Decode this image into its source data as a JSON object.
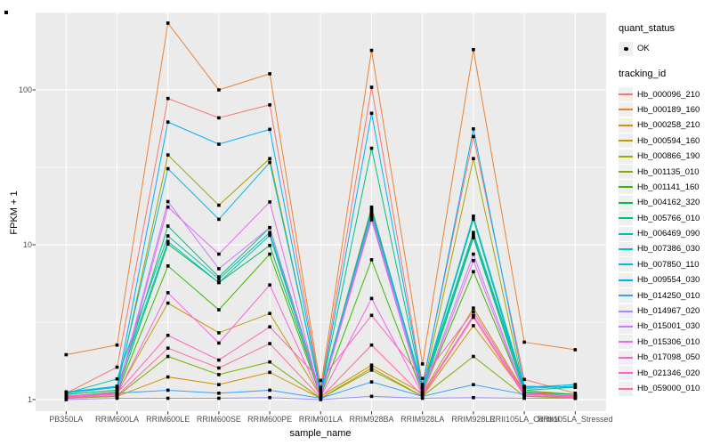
{
  "figure": {
    "panel_background": "#EBEBEB",
    "gridline_color": "#FFFFFF",
    "tick_mark_color": "#333333",
    "tick_label_color": "#4D4D4D",
    "point_color": "#000000",
    "legend_key_background": "#EFEFEF"
  },
  "legend": {
    "quant_status_title": "quant_status",
    "ok_label": "OK",
    "tracking_title": "tracking_id"
  },
  "chart_data": {
    "type": "line",
    "title": "",
    "xlabel": "sample_name",
    "ylabel": "FPKM + 1",
    "y_scale": "log10",
    "y_ticks": [
      1,
      10,
      100
    ],
    "y_tick_labels": [
      "1",
      "10",
      "100"
    ],
    "ylim": [
      1,
      320
    ],
    "grid": true,
    "legend_position": "right",
    "point_shape": "filled-square",
    "categories": [
      "PB350LA",
      "RRIM600LA",
      "RRIM600LE",
      "RRIM600SE",
      "RRIM600PE",
      "RRIM901LA",
      "RRIM928BA",
      "RRIM928LA",
      "RRIM928LE",
      "RRII105LA_Control",
      "RRII105LA_Stressed"
    ],
    "series": [
      {
        "name": "Hb_000096_210",
        "color": "#F8766D",
        "values": [
          1.1,
          1.62,
          88,
          66,
          80,
          1.15,
          104,
          1.25,
          50,
          1.35,
          1.1
        ]
      },
      {
        "name": "Hb_000189_160",
        "color": "#EA8331",
        "values": [
          1.95,
          2.25,
          270,
          100,
          127,
          1.2,
          180,
          1.7,
          182,
          2.35,
          2.1
        ]
      },
      {
        "name": "Hb_000258_210",
        "color": "#D89000",
        "values": [
          1.02,
          1.05,
          1.4,
          1.25,
          1.5,
          1.02,
          1.6,
          1.05,
          3.0,
          1.1,
          1.02
        ]
      },
      {
        "name": "Hb_000594_160",
        "color": "#C09B00",
        "values": [
          1.05,
          1.1,
          4.2,
          2.7,
          3.6,
          1.05,
          1.67,
          1.1,
          3.9,
          1.12,
          1.05
        ]
      },
      {
        "name": "Hb_000866_190",
        "color": "#A3A500",
        "values": [
          1.08,
          1.15,
          38,
          18,
          36,
          1.1,
          17.5,
          1.15,
          36,
          1.15,
          1.08
        ]
      },
      {
        "name": "Hb_001135_010",
        "color": "#7CAE00",
        "values": [
          1.02,
          1.05,
          1.9,
          1.45,
          1.75,
          1.02,
          1.55,
          1.05,
          1.9,
          1.05,
          1.02
        ]
      },
      {
        "name": "Hb_001141_160",
        "color": "#39B600",
        "values": [
          1.05,
          1.1,
          7.3,
          3.8,
          8.7,
          1.05,
          8.0,
          1.1,
          6.7,
          1.1,
          1.05
        ]
      },
      {
        "name": "Hb_004162_320",
        "color": "#00BB4E",
        "values": [
          1.05,
          1.12,
          10.1,
          5.7,
          9.9,
          1.08,
          15.0,
          1.12,
          11.1,
          1.12,
          1.08
        ]
      },
      {
        "name": "Hb_005766_010",
        "color": "#00BF7D",
        "values": [
          1.08,
          1.15,
          13.2,
          6.2,
          12.9,
          1.1,
          42,
          1.18,
          14.6,
          1.15,
          1.2
        ]
      },
      {
        "name": "Hb_006469_090",
        "color": "#00C1A3",
        "values": [
          1.1,
          1.36,
          11.4,
          6.0,
          12.0,
          1.1,
          17.0,
          1.2,
          12.0,
          1.2,
          1.25
        ]
      },
      {
        "name": "Hb_007386_030",
        "color": "#00BFC4",
        "values": [
          1.1,
          1.2,
          10.5,
          5.7,
          11.5,
          1.08,
          16.0,
          1.18,
          11.5,
          1.18,
          1.22
        ]
      },
      {
        "name": "Hb_007850_110",
        "color": "#00BAE0",
        "values": [
          1.12,
          1.2,
          31,
          14.6,
          34,
          1.1,
          16.5,
          1.2,
          15.3,
          1.2,
          1.25
        ]
      },
      {
        "name": "Hb_009554_030",
        "color": "#00B0F6",
        "values": [
          1.12,
          1.22,
          62,
          44.6,
          55.6,
          1.12,
          70.6,
          1.22,
          56,
          1.22,
          1.2
        ]
      },
      {
        "name": "Hb_014250_010",
        "color": "#35A2FF",
        "values": [
          1.05,
          1.1,
          1.15,
          1.1,
          1.15,
          1.02,
          1.3,
          1.05,
          1.25,
          1.08,
          1.05
        ]
      },
      {
        "name": "Hb_014967_020",
        "color": "#9590FF",
        "values": [
          1.0,
          1.02,
          1.02,
          1.02,
          1.03,
          1.0,
          1.05,
          1.02,
          1.03,
          1.02,
          1.02
        ]
      },
      {
        "name": "Hb_015001_030",
        "color": "#C77CFF",
        "values": [
          1.05,
          1.1,
          19,
          7.0,
          12.9,
          1.05,
          15.5,
          1.1,
          8.7,
          1.1,
          1.05
        ]
      },
      {
        "name": "Hb_015306_010",
        "color": "#E76BF3",
        "values": [
          1.05,
          1.08,
          17.5,
          8.7,
          18.9,
          1.05,
          14.5,
          1.08,
          7.9,
          1.08,
          1.05
        ]
      },
      {
        "name": "Hb_017098_050",
        "color": "#FA62DB",
        "values": [
          1.04,
          1.08,
          4.9,
          2.32,
          5.5,
          1.04,
          4.5,
          1.08,
          3.5,
          1.08,
          1.04
        ]
      },
      {
        "name": "Hb_021346_020",
        "color": "#FF62BC",
        "values": [
          1.06,
          1.1,
          2.6,
          1.8,
          2.95,
          1.33,
          3.5,
          1.37,
          3.7,
          1.1,
          1.06
        ]
      },
      {
        "name": "Hb_059000_010",
        "color": "#FF6A98",
        "values": [
          1.03,
          1.06,
          2.15,
          1.6,
          2.3,
          1.03,
          2.25,
          1.06,
          3.4,
          1.06,
          1.03
        ]
      }
    ]
  }
}
